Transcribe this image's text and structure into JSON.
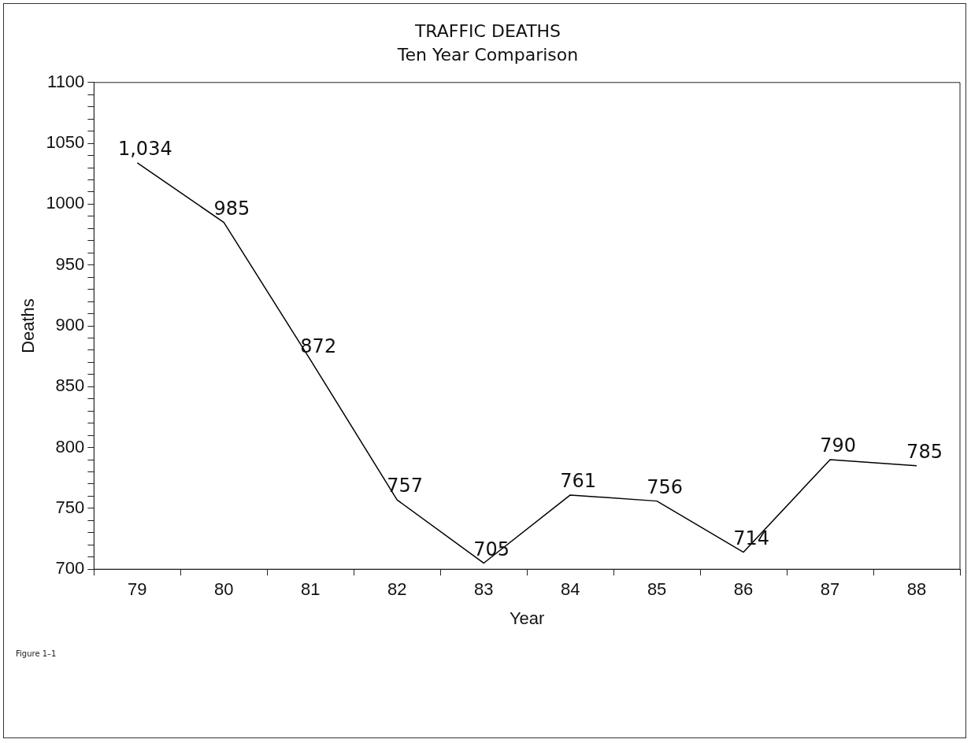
{
  "chart_data": {
    "type": "line",
    "title": "TRAFFIC DEATHS",
    "subtitle": "Ten Year Comparison",
    "xlabel": "Year",
    "ylabel": "Deaths",
    "categories": [
      "79",
      "80",
      "81",
      "82",
      "83",
      "84",
      "85",
      "86",
      "87",
      "88"
    ],
    "values": [
      1034,
      985,
      872,
      757,
      705,
      761,
      756,
      714,
      790,
      785
    ],
    "value_labels": [
      "1,034",
      "985",
      "872",
      "757",
      "705",
      "761",
      "756",
      "714",
      "790",
      "785"
    ],
    "color": "#000000",
    "marker": "none",
    "line_style": "solid",
    "grid": false,
    "ylim": [
      700,
      1100
    ],
    "yticks": [
      700,
      {
        "value": 710,
        "label": null
      },
      {
        "value": 720,
        "label": null
      },
      {
        "value": 730,
        "label": null
      },
      {
        "value": 740,
        "label": null
      },
      750,
      {
        "value": 760,
        "label": null
      },
      {
        "value": 770,
        "label": null
      },
      {
        "value": 780,
        "label": null
      },
      {
        "value": 790,
        "label": null
      },
      800,
      {
        "value": 810,
        "label": null
      },
      {
        "value": 820,
        "label": null
      },
      {
        "value": 830,
        "label": null
      },
      {
        "value": 840,
        "label": null
      },
      850,
      {
        "value": 860,
        "label": null
      },
      {
        "value": 870,
        "label": null
      },
      {
        "value": 880,
        "label": null
      },
      {
        "value": 890,
        "label": null
      },
      900,
      {
        "value": 910,
        "label": null
      },
      {
        "value": 920,
        "label": null
      },
      {
        "value": 930,
        "label": null
      },
      {
        "value": 940,
        "label": null
      },
      950,
      {
        "value": 960,
        "label": null
      },
      {
        "value": 970,
        "label": null
      },
      {
        "value": 980,
        "label": null
      },
      {
        "value": 990,
        "label": null
      },
      1000,
      {
        "value": 1010,
        "label": null
      },
      {
        "value": 1020,
        "label": null
      },
      {
        "value": 1030,
        "label": null
      },
      {
        "value": 1040,
        "label": null
      },
      1050,
      {
        "value": 1060,
        "label": null
      },
      {
        "value": 1070,
        "label": null
      },
      {
        "value": 1080,
        "label": null
      },
      {
        "value": 1090,
        "label": null
      },
      1100
    ],
    "annotations": [
      "Figure 1–1"
    ]
  }
}
